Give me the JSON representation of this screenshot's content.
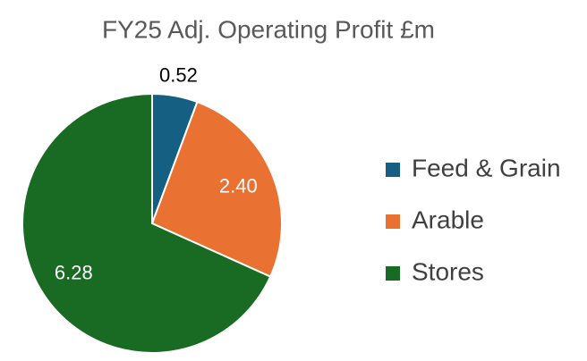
{
  "chart_data": {
    "type": "pie",
    "title": "FY25 Adj. Operating Profit £m",
    "categories": [
      "Feed & Grain",
      "Arable",
      "Stores"
    ],
    "values": [
      0.52,
      2.4,
      6.28
    ],
    "value_labels": [
      "0.52",
      "2.40",
      "6.28"
    ],
    "colors": [
      "#156082",
      "#e97132",
      "#196b24"
    ],
    "legend": "right"
  }
}
